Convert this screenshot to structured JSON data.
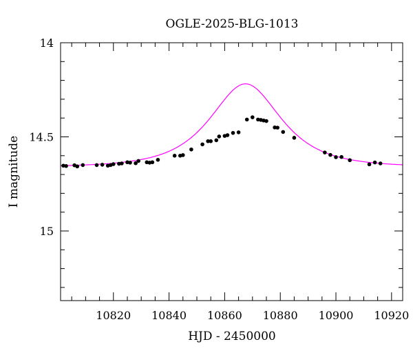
{
  "chart_data": {
    "type": "scatter",
    "title": "OGLE-2025-BLG-1013",
    "xlabel": "HJD - 2450000",
    "ylabel": "I magnitude",
    "xlim": [
      10801,
      10924
    ],
    "ylim": [
      14.0,
      15.37
    ],
    "y_inverted": true,
    "x_ticks": [
      10820,
      10840,
      10860,
      10880,
      10900,
      10920
    ],
    "y_ticks": [
      14,
      14.5,
      15
    ],
    "y_tick_labels": [
      "14",
      "14.5",
      "15"
    ],
    "grid": false,
    "colors": {
      "points": "#000000",
      "model": "#ff00ff",
      "axes": "#000000"
    },
    "series": [
      {
        "kind": "points",
        "x": [
          10802,
          10803,
          10806,
          10807,
          10809,
          10814,
          10816,
          10818,
          10819,
          10820,
          10822,
          10823,
          10825,
          10826,
          10828,
          10829,
          10832,
          10833,
          10834,
          10836,
          10842,
          10844,
          10845,
          10848,
          10852,
          10854,
          10855,
          10857,
          10858,
          10860,
          10861,
          10863,
          10865,
          10868,
          10870,
          10872,
          10873,
          10874,
          10875,
          10878,
          10879,
          10881,
          10885,
          10896,
          10898,
          10900,
          10902,
          10905,
          10912,
          10914,
          10916
        ],
        "y": [
          14.653,
          14.655,
          14.651,
          14.657,
          14.65,
          14.65,
          14.648,
          14.653,
          14.65,
          14.645,
          14.643,
          14.641,
          14.635,
          14.637,
          14.64,
          14.628,
          14.635,
          14.637,
          14.635,
          14.622,
          14.6,
          14.6,
          14.597,
          14.567,
          14.54,
          14.523,
          14.523,
          14.518,
          14.498,
          14.495,
          14.491,
          14.479,
          14.476,
          14.408,
          14.396,
          14.408,
          14.41,
          14.413,
          14.416,
          14.45,
          14.451,
          14.474,
          14.505,
          14.583,
          14.596,
          14.608,
          14.607,
          14.624,
          14.646,
          14.636,
          14.641
        ]
      },
      {
        "kind": "model",
        "t0": 10867.5,
        "u0": 0.825,
        "tE": 17.0,
        "I_base": 14.66
      }
    ]
  }
}
